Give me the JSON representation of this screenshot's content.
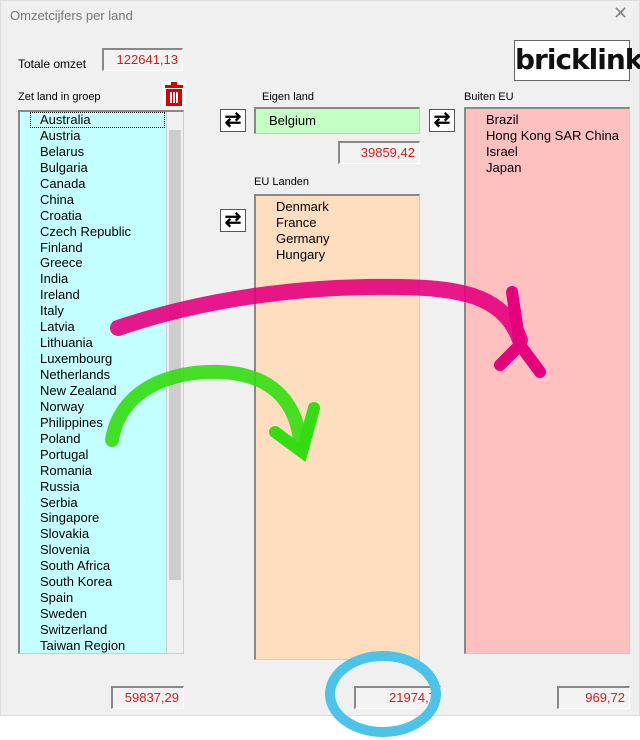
{
  "window": {
    "title": "Omzetcijfers per land",
    "close": "✕"
  },
  "total": {
    "label": "Totale omzet",
    "value": "122641,13"
  },
  "logo": "bricklink",
  "group": {
    "label": "Zet land in groep",
    "items": [
      "Australia",
      "Austria",
      "Belarus",
      "Bulgaria",
      "Canada",
      "China",
      "Croatia",
      "Czech Republic",
      "Finland",
      "Greece",
      "India",
      "Ireland",
      "Italy",
      "Latvia",
      "Lithuania",
      "Luxembourg",
      "Netherlands",
      "New Zealand",
      "Norway",
      "Philippines",
      "Poland",
      "Portugal",
      "Romania",
      "Russia",
      "Serbia",
      "Singapore",
      "Slovakia",
      "Slovenia",
      "South Africa",
      "South Korea",
      "Spain",
      "Sweden",
      "Switzerland",
      "Taiwan Region"
    ],
    "selected": "Australia",
    "total": "59837,29"
  },
  "own": {
    "label": "Eigen land",
    "value": "Belgium",
    "total": "39859,42"
  },
  "eu": {
    "label": "EU Landen",
    "items": [
      "Denmark",
      "France",
      "Germany",
      "Hungary"
    ],
    "total": "21974,7"
  },
  "noneu": {
    "label": "Buiten EU",
    "items": [
      "Brazil",
      "Hong Kong SAR China",
      "Israel",
      "Japan"
    ],
    "total": "969,72"
  },
  "swap_icon": "⇄",
  "colors": {
    "group_bg": "#c4ffff",
    "own_bg": "#c4ffc4",
    "eu_bg": "#ffdec0",
    "noneu_bg": "#ffc0c0",
    "value_text": "#d41c1c",
    "annotation_magenta": "#e5007e",
    "annotation_green": "#33dd11",
    "annotation_circle": "#4cc3e8"
  }
}
